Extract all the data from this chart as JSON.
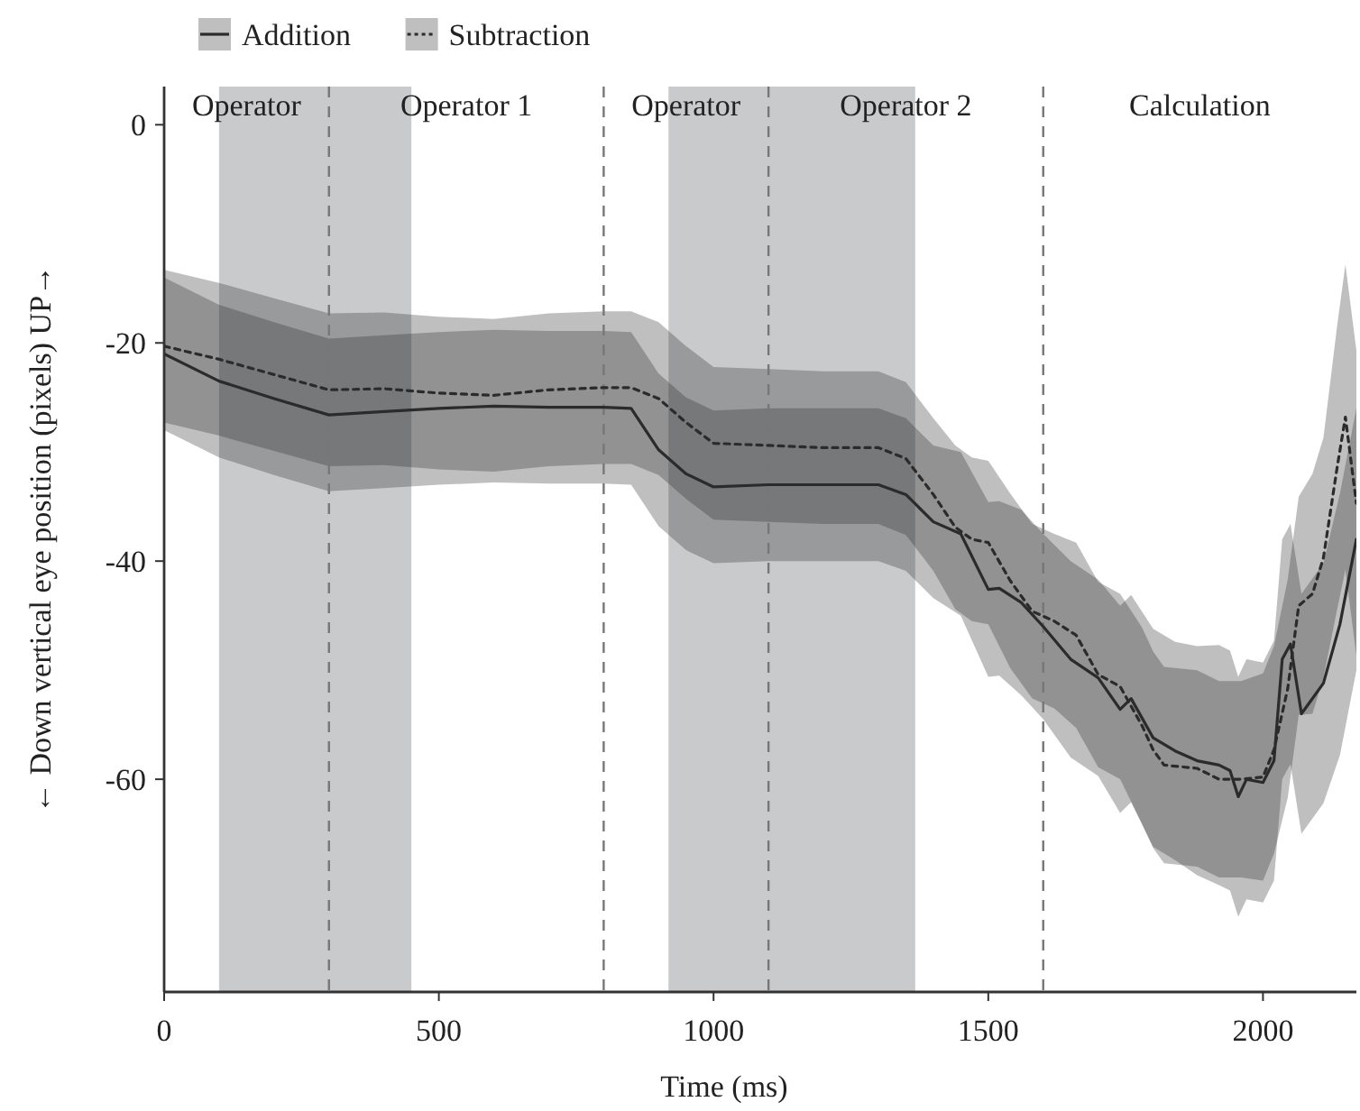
{
  "chart_data": {
    "type": "line",
    "xlabel": "Time (ms)",
    "ylabel": "← Down vertical eye position (pixels) UP→",
    "xlim": [
      0,
      2170
    ],
    "ylim": [
      -79.5,
      3.5
    ],
    "xticks": [
      0,
      500,
      1000,
      1500,
      2000
    ],
    "yticks": [
      0,
      -20,
      -40,
      -60
    ],
    "grid": false,
    "legend": "top left",
    "marker": "none",
    "series": [
      {
        "name": "Addition",
        "color": "#2b2b2b",
        "line_style": "solid",
        "x": [
          0,
          100,
          200,
          300,
          400,
          500,
          600,
          700,
          800,
          850,
          900,
          950,
          1000,
          1100,
          1200,
          1300,
          1350,
          1400,
          1450,
          1500,
          1520,
          1560,
          1600,
          1650,
          1700,
          1740,
          1760,
          1800,
          1840,
          1880,
          1920,
          1940,
          1955,
          1970,
          2000,
          2020,
          2035,
          2050,
          2070,
          2110,
          2140,
          2170
        ],
        "values": [
          -21,
          -23.5,
          -25.1,
          -26.6,
          -26.3,
          -26,
          -25.8,
          -25.9,
          -25.9,
          -26,
          -29.8,
          -32,
          -33.2,
          -33,
          -33,
          -33,
          -33.9,
          -36.4,
          -37.5,
          -42.6,
          -42.5,
          -43.8,
          -46,
          -49,
          -50.7,
          -53.6,
          -52.6,
          -56.2,
          -57.4,
          -58.3,
          -58.7,
          -59.2,
          -61.6,
          -60,
          -60.3,
          -58.3,
          -49,
          -47.6,
          -54,
          -51.2,
          -45.8,
          -38
        ],
        "upper": [
          -14,
          -16.5,
          -18.1,
          -19.6,
          -19.3,
          -19,
          -18.8,
          -18.9,
          -18.9,
          -19,
          -22.8,
          -25,
          -26.2,
          -26,
          -26,
          -26,
          -26.9,
          -29.4,
          -30,
          -34.6,
          -34.5,
          -35.3,
          -37.5,
          -40,
          -41.7,
          -44.1,
          -43.1,
          -46.2,
          -47.4,
          -47.8,
          -47.7,
          -48.2,
          -50.6,
          -49,
          -49.3,
          -47.3,
          -38,
          -36.6,
          -43,
          -40.2,
          -33.8,
          -26
        ],
        "lower": [
          -28,
          -30.5,
          -32.1,
          -33.6,
          -33.3,
          -33,
          -32.8,
          -32.9,
          -32.9,
          -33,
          -36.8,
          -39,
          -40.2,
          -40,
          -40,
          -40,
          -40.9,
          -43.4,
          -45,
          -50.6,
          -50.5,
          -52.3,
          -54.5,
          -58,
          -59.7,
          -63.1,
          -62.1,
          -66.2,
          -67.4,
          -68.8,
          -69.7,
          -70.2,
          -72.6,
          -71,
          -71.3,
          -69.3,
          -60,
          -58.6,
          -65,
          -62.2,
          -57.8,
          -50
        ]
      },
      {
        "name": "Subtraction",
        "color": "#2b2b2b",
        "line_style": "dotted",
        "x": [
          0,
          100,
          200,
          300,
          400,
          500,
          600,
          700,
          800,
          850,
          900,
          950,
          1000,
          1100,
          1200,
          1300,
          1350,
          1400,
          1440,
          1470,
          1500,
          1540,
          1580,
          1620,
          1660,
          1700,
          1740,
          1780,
          1800,
          1820,
          1880,
          1920,
          1960,
          2000,
          2020,
          2045,
          2065,
          2090,
          2110,
          2135,
          2150,
          2170
        ],
        "values": [
          -20.3,
          -21.5,
          -22.9,
          -24.3,
          -24.2,
          -24.6,
          -24.8,
          -24.3,
          -24.1,
          -24.1,
          -25.1,
          -27.3,
          -29.2,
          -29.4,
          -29.6,
          -29.6,
          -30.6,
          -33.9,
          -36.9,
          -38,
          -38.3,
          -41.8,
          -44.6,
          -45.5,
          -46.8,
          -50.4,
          -51.5,
          -55.1,
          -57.3,
          -58.7,
          -59,
          -60,
          -60,
          -59.8,
          -57.3,
          -51.7,
          -44.1,
          -43,
          -39.7,
          -31.4,
          -26.8,
          -34.7
        ],
        "upper": [
          -13.3,
          -14.5,
          -15.9,
          -17.3,
          -17.2,
          -17.6,
          -17.8,
          -17.3,
          -17.1,
          -17.1,
          -18.1,
          -20.3,
          -22.2,
          -22.4,
          -22.6,
          -22.6,
          -23.6,
          -26.9,
          -29.4,
          -30.5,
          -30.8,
          -33.8,
          -36.6,
          -37.5,
          -38.3,
          -41.9,
          -43,
          -46.1,
          -48.3,
          -49.7,
          -50,
          -51,
          -51,
          -50.3,
          -47.8,
          -41.7,
          -34.1,
          -32,
          -28.7,
          -18.4,
          -12.8,
          -20.7
        ],
        "lower": [
          -27.3,
          -28.5,
          -29.9,
          -31.3,
          -31.2,
          -31.6,
          -31.8,
          -31.3,
          -31.1,
          -31.1,
          -32.1,
          -34.3,
          -36.2,
          -36.4,
          -36.6,
          -36.6,
          -37.6,
          -40.9,
          -44.4,
          -45.5,
          -45.8,
          -49.8,
          -52.6,
          -53.5,
          -55.3,
          -58.9,
          -60,
          -64.1,
          -66.3,
          -67.7,
          -68,
          -69,
          -69,
          -69.3,
          -66.8,
          -61.7,
          -54.1,
          -54,
          -50.7,
          -44.4,
          -40.8,
          -48.7
        ]
      }
    ],
    "bands": [
      {
        "axis": "x",
        "from": 100,
        "to": 450,
        "color": "#c9cacc"
      },
      {
        "axis": "x",
        "from": 918,
        "to": 1367,
        "color": "#c9cacc"
      }
    ],
    "ref_lines": [
      {
        "axis": "x",
        "value": 300,
        "color": "#777777",
        "line_style": "dashed"
      },
      {
        "axis": "x",
        "value": 800,
        "color": "#777777",
        "line_style": "dashed"
      },
      {
        "axis": "x",
        "value": 1100,
        "color": "#777777",
        "line_style": "dashed"
      },
      {
        "axis": "x",
        "value": 1600,
        "color": "#777777",
        "line_style": "dashed"
      }
    ],
    "annotations": [
      "Operator",
      "Operator 1",
      "Operator",
      "Operator 2",
      "Calculation"
    ]
  }
}
